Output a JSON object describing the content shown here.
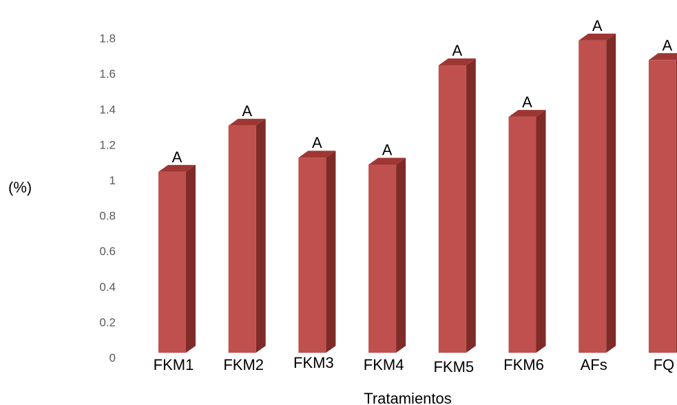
{
  "chart_data": {
    "type": "bar",
    "style": "3d-column",
    "title": "",
    "xlabel": "Tratamientos",
    "ylabel": "(%)",
    "categories": [
      "FKM1",
      "FKM2",
      "FKM3",
      "FKM4",
      "FKM5",
      "FKM6",
      "AFs",
      "FQ"
    ],
    "values": [
      1.02,
      1.28,
      1.1,
      1.06,
      1.62,
      1.33,
      1.76,
      1.65
    ],
    "data_labels": [
      "A",
      "A",
      "A",
      "A",
      "A",
      "A",
      "A",
      "A"
    ],
    "ylim": [
      0,
      1.8
    ],
    "yticks": [
      0,
      0.2,
      0.4,
      0.6,
      0.8,
      1,
      1.2,
      1.4,
      1.6,
      1.8
    ],
    "ytick_labels": [
      "0",
      "0.2",
      "0.4",
      "0.6",
      "0.8",
      "1",
      "1.2",
      "1.4",
      "1.6",
      "1.8"
    ],
    "grid": false,
    "legend": "none",
    "colors": {
      "bar_front": "#c0504d",
      "bar_side": "#7f2b28",
      "bar_top": "#9e3734"
    }
  }
}
